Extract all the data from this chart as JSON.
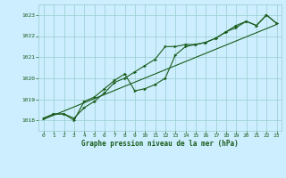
{
  "title": "Graphe pression niveau de la mer (hPa)",
  "background_color": "#cceeff",
  "grid_color": "#99cccc",
  "line_color": "#1a5c1a",
  "text_color": "#1a5c1a",
  "xlim": [
    -0.5,
    23.5
  ],
  "ylim": [
    1017.5,
    1023.5
  ],
  "yticks": [
    1018,
    1019,
    1020,
    1021,
    1022,
    1023
  ],
  "xticks": [
    0,
    1,
    2,
    3,
    4,
    5,
    6,
    7,
    8,
    9,
    10,
    11,
    12,
    13,
    14,
    15,
    16,
    17,
    18,
    19,
    20,
    21,
    22,
    23
  ],
  "series1_x": [
    0,
    1,
    2,
    3,
    4,
    5,
    6,
    7,
    8,
    9,
    10,
    11,
    12,
    13,
    14,
    15,
    16,
    17,
    18,
    19,
    20,
    21,
    22,
    23
  ],
  "series1_y": [
    1018.1,
    1018.3,
    1018.3,
    1018.1,
    1018.6,
    1018.9,
    1019.3,
    1019.8,
    1020.0,
    1020.3,
    1020.6,
    1020.9,
    1021.5,
    1021.5,
    1021.6,
    1021.6,
    1021.7,
    1021.9,
    1022.2,
    1022.5,
    1022.7,
    1022.5,
    1023.0,
    1022.6
  ],
  "series2_x": [
    0,
    1,
    2,
    3,
    4,
    5,
    6,
    7,
    8,
    9,
    10,
    11,
    12,
    13,
    14,
    15,
    16,
    17,
    18,
    19,
    20,
    21,
    22,
    23
  ],
  "series2_y": [
    1018.1,
    1018.3,
    1018.3,
    1018.0,
    1018.9,
    1019.1,
    1019.5,
    1019.9,
    1020.2,
    1019.4,
    1019.5,
    1019.7,
    1020.0,
    1021.1,
    1021.5,
    1021.6,
    1021.7,
    1021.9,
    1022.2,
    1022.4,
    1022.7,
    1022.5,
    1023.0,
    1022.6
  ],
  "trend_x": [
    0,
    23
  ],
  "trend_y": [
    1018.05,
    1022.55
  ]
}
